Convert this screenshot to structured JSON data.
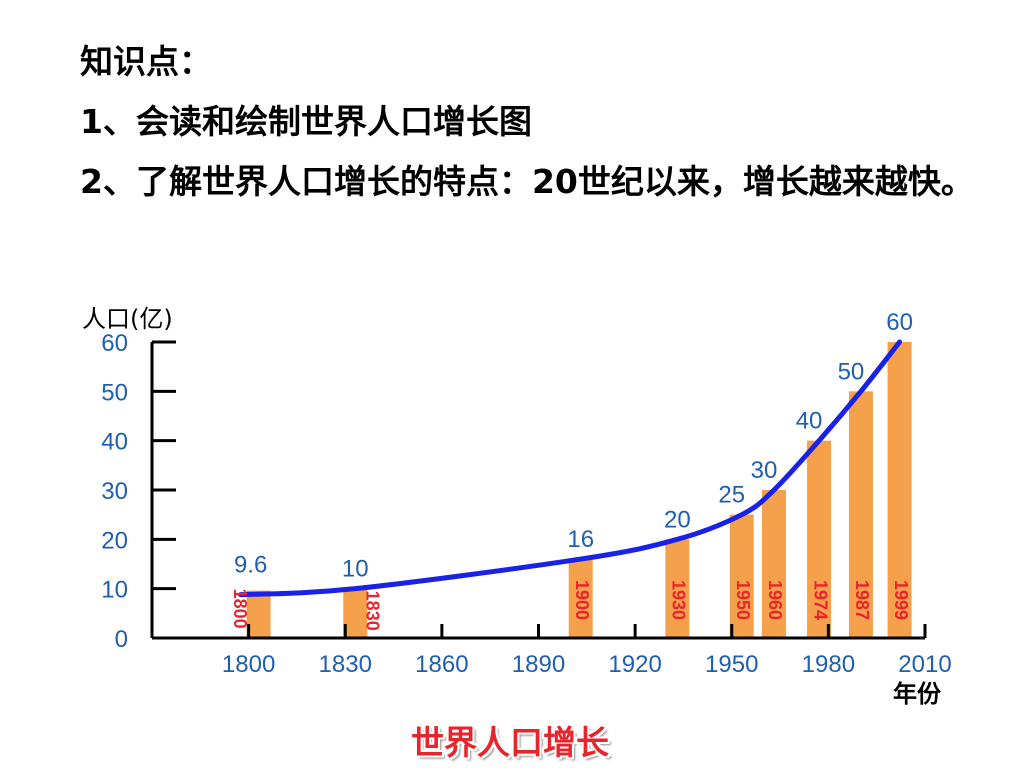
{
  "knowledge": {
    "heading": "知识点：",
    "point1": "1、会读和绘制世界人口增长图",
    "point2": "2、了解世界人口增长的特点：20世纪以来，增长越来越快。"
  },
  "chart_data": {
    "type": "bar",
    "caption": "世界人口增长",
    "ylabel": "人口(亿)",
    "xlabel": "年份",
    "ylim": [
      0,
      60
    ],
    "y_ticks": [
      0,
      10,
      20,
      30,
      40,
      50,
      60
    ],
    "xlim": [
      1770,
      2010
    ],
    "x_ticks": [
      1800,
      1830,
      1860,
      1890,
      1920,
      1950,
      1980,
      2010
    ],
    "bars": [
      {
        "year": 1800,
        "value": 9.6,
        "value_label": "9.6",
        "year_label": "1800"
      },
      {
        "year": 1830,
        "value": 10,
        "value_label": "10",
        "year_label": "1830"
      },
      {
        "year": 1900,
        "value": 16,
        "value_label": "16",
        "year_label": "1900"
      },
      {
        "year": 1930,
        "value": 20,
        "value_label": "20",
        "year_label": "1930"
      },
      {
        "year": 1950,
        "value": 25,
        "value_label": "25",
        "year_label": "1950"
      },
      {
        "year": 1960,
        "value": 30,
        "value_label": "30",
        "year_label": "1960"
      },
      {
        "year": 1974,
        "value": 40,
        "value_label": "40",
        "year_label": "1974"
      },
      {
        "year": 1987,
        "value": 50,
        "value_label": "50",
        "year_label": "1987"
      },
      {
        "year": 1999,
        "value": 60,
        "value_label": "60",
        "year_label": "1999"
      }
    ],
    "trend_line": true,
    "colors": {
      "bar": "#f5a04b",
      "trend": "#1a22e6",
      "tick_label": "#1f5fb0",
      "value_label": "#1f5fb0",
      "year_label": "#e8242c",
      "caption": "#e8242c"
    }
  }
}
